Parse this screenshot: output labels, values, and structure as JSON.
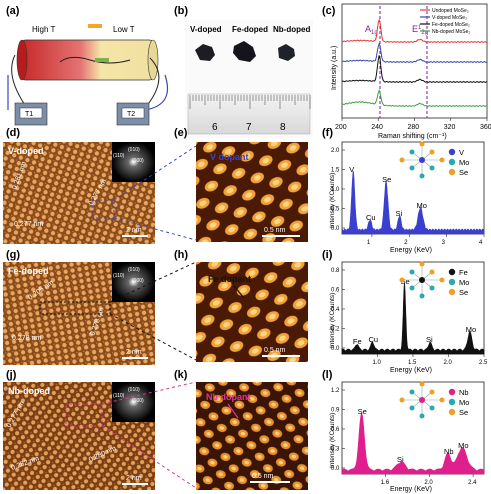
{
  "panels": {
    "a": {
      "label": "(a)",
      "high_t": "High T",
      "low_t": "Low T",
      "t1": "T1",
      "t2": "T2"
    },
    "b": {
      "label": "(b)",
      "samples": [
        "V-doped",
        "Fe-doped",
        "Nb-doped"
      ],
      "ruler_numbers": [
        "6",
        "7",
        "8"
      ]
    },
    "c": {
      "label": "(c)",
      "ylabel": "Intensity (a.u.)",
      "xlabel": "Raman shifting (cm⁻¹)",
      "peak1": "A",
      "peak1_sub": "1g",
      "peak2": "E",
      "peak2_sup": "1",
      "peak2_sub": "2g",
      "legend": [
        "Undoped MoSe₂",
        "V-doped MoSe₂",
        "Fe-doped MoSe₂",
        "Nb-doped MoSe₂"
      ],
      "legend_colors": [
        "#e53935",
        "#3949ab",
        "#111111",
        "#43a047"
      ],
      "xticks": [
        "200",
        "240",
        "280",
        "320",
        "360"
      ]
    },
    "d": {
      "label": "(d)",
      "title": "V-doped",
      "d1": "0.281 nm",
      "d2": "0.277 nm",
      "d3": "0.277 nm",
      "scale": "2 nm",
      "fft": [
        "(010)",
        "(110)",
        "(100)"
      ]
    },
    "e": {
      "label": "(e)",
      "title": "V dopant",
      "scale": "0.5 nm"
    },
    "f": {
      "label": "(f)",
      "ylabel": "Intensity (KCounts)",
      "xlabel": "Energy (KeV)",
      "peaks": [
        "V",
        "Cu",
        "Se",
        "Si",
        "Mo"
      ],
      "yticks": [
        "0.0",
        "0.5",
        "1.0",
        "1.5",
        "2.0"
      ],
      "xticks": [
        "1",
        "2",
        "3",
        "4"
      ],
      "legend": [
        "V",
        "Mo",
        "Se"
      ]
    },
    "g": {
      "label": "(g)",
      "title": "Fe-doped",
      "d1": "0.205 nm",
      "d2": "0.278 nm",
      "d3": "0.278 nm",
      "scale": "2 nm",
      "fft": [
        "(010)",
        "(110)",
        "(100)"
      ]
    },
    "h": {
      "label": "(h)",
      "title": "Fe dopant",
      "scale": "0.5 nm"
    },
    "i": {
      "label": "(i)",
      "ylabel": "Intensity (KCounts)",
      "xlabel": "Energy (KeV)",
      "peaks": [
        "Fe",
        "Cu",
        "Se",
        "Si",
        "Mo"
      ],
      "yticks": [
        "0.0",
        "0.2",
        "0.4",
        "0.6",
        "0.8"
      ],
      "xticks": [
        "1.0",
        "1.5",
        "2.0",
        "2.5"
      ],
      "legend": [
        "Fe",
        "Mo",
        "Se"
      ]
    },
    "j": {
      "label": "(j)",
      "title": "Nb-doped",
      "d1": "0.277 nm",
      "d2": "0.282 nm",
      "d3": "0.280 nm",
      "scale": "2 nm",
      "fft": [
        "(010)",
        "(110)",
        "(100)"
      ]
    },
    "k": {
      "label": "(k)",
      "title": "Nb dopant",
      "scale": "0.5 nm"
    },
    "l": {
      "label": "(l)",
      "ylabel": "Intensity (KCounts)",
      "xlabel": "Energy (KeV)",
      "peaks": [
        "Se",
        "Si",
        "Nb",
        "Mo"
      ],
      "yticks": [
        "0.0",
        "0.3",
        "0.6",
        "0.9",
        "1.2"
      ],
      "xticks": [
        "1.6",
        "2.0",
        "2.4"
      ],
      "legend": [
        "Nb",
        "Mo",
        "Se"
      ]
    }
  },
  "colors": {
    "stm_orange": "#e08a2a",
    "dash_blue": "#3a46c8",
    "dash_black": "#111111",
    "dash_magenta": "#e0339a",
    "eds_blue": "#3b3fd0",
    "eds_black": "#111111",
    "eds_magenta": "#e01f8f"
  }
}
